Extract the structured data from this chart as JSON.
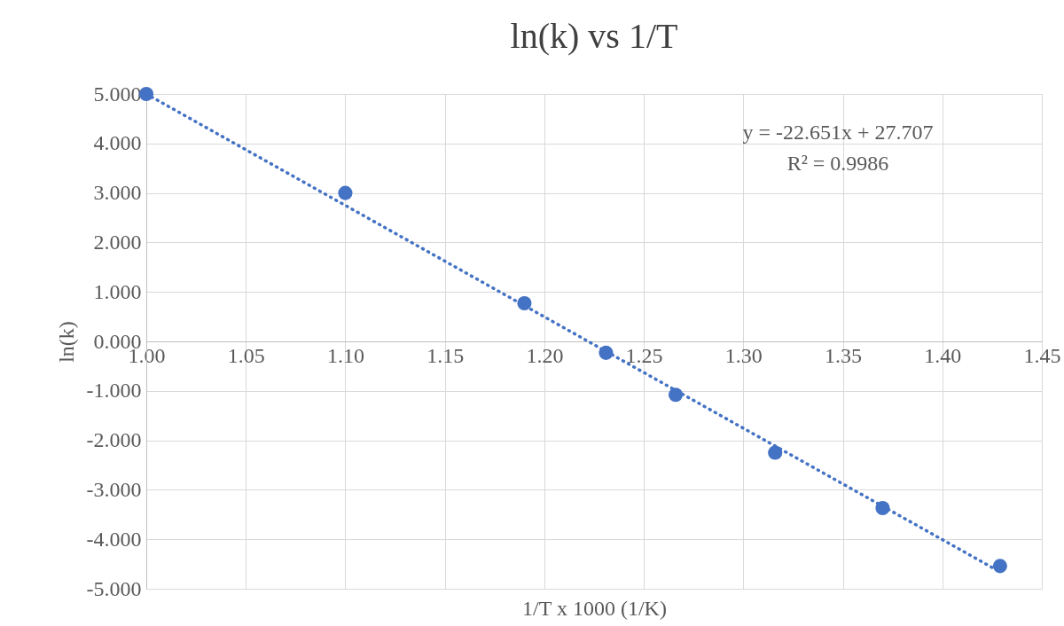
{
  "chart_data": {
    "type": "scatter",
    "title": "ln(k) vs 1/T",
    "xlabel": "1/T x 1000 (1/K)",
    "ylabel": "ln(k)",
    "x": [
      1.0,
      1.1,
      1.19,
      1.231,
      1.266,
      1.316,
      1.37,
      1.429
    ],
    "series": [
      {
        "color": "#4472c4",
        "marker": "circle",
        "values": [
          5.0,
          3.0,
          0.77,
          -0.23,
          -1.08,
          -2.25,
          -3.37,
          -4.54
        ]
      },
      {
        "type": "line",
        "color": "#4472c4",
        "line_style": "dotted",
        "x": [
          1.0,
          1.429
        ],
        "values": [
          5.0,
          -4.66
        ]
      }
    ],
    "annotations": [
      "y = -22.651x + 27.707",
      "R² = 0.9986"
    ],
    "xlim": [
      1.0,
      1.45
    ],
    "xticks": [
      {
        "value": 1.0,
        "label": "1.00"
      },
      {
        "value": 1.05,
        "label": "1.05"
      },
      {
        "value": 1.1,
        "label": "1.10"
      },
      {
        "value": 1.15,
        "label": "1.15"
      },
      {
        "value": 1.2,
        "label": "1.20"
      },
      {
        "value": 1.25,
        "label": "1.25"
      },
      {
        "value": 1.3,
        "label": "1.30"
      },
      {
        "value": 1.35,
        "label": "1.35"
      },
      {
        "value": 1.4,
        "label": "1.40"
      },
      {
        "value": 1.45,
        "label": "1.45"
      }
    ],
    "ylim": [
      -5,
      5
    ],
    "yticks": [
      {
        "value": -5,
        "label": "-5.000"
      },
      {
        "value": -4,
        "label": "-4.000"
      },
      {
        "value": -3,
        "label": "-3.000"
      },
      {
        "value": -2,
        "label": "-2.000"
      },
      {
        "value": -1,
        "label": "-1.000"
      },
      {
        "value": 0,
        "label": "0.000"
      },
      {
        "value": 1,
        "label": "1.000"
      },
      {
        "value": 2,
        "label": "2.000"
      },
      {
        "value": 3,
        "label": "3.000"
      },
      {
        "value": 4,
        "label": "4.000"
      },
      {
        "value": 5,
        "label": "5.000"
      }
    ],
    "grid": true
  }
}
